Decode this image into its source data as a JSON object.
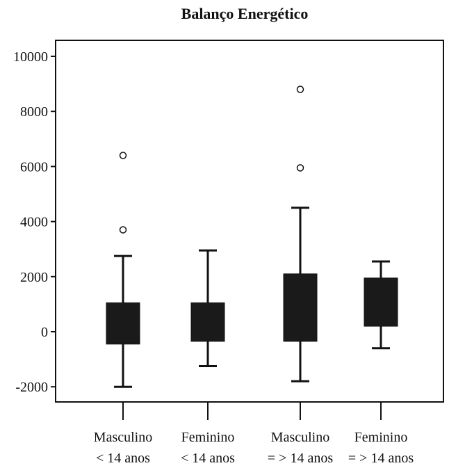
{
  "chart_data": {
    "type": "boxplot",
    "title": "Balanço Energético",
    "xlabel": "",
    "ylabel": "",
    "ylim": [
      -2600,
      10500
    ],
    "yticks": [
      -2000,
      0,
      2000,
      4000,
      6000,
      8000,
      10000
    ],
    "ytick_labels": [
      "-2000",
      "0",
      "2000",
      "4000",
      "6000",
      "8000",
      "10000"
    ],
    "categories": [
      [
        "Masculino",
        "< 14 anos"
      ],
      [
        "Feminino",
        "< 14 anos"
      ],
      [
        "Masculino",
        "= > 14 anos"
      ],
      [
        "Feminino",
        "= > 14 anos"
      ]
    ],
    "boxes": [
      {
        "whisker_low": -2000,
        "q1": -450,
        "q3": 1050,
        "whisker_high": 2750,
        "outliers": [
          3700,
          6400
        ]
      },
      {
        "whisker_low": -1250,
        "q1": -350,
        "q3": 1050,
        "whisker_high": 2950,
        "outliers": []
      },
      {
        "whisker_low": -1800,
        "q1": -350,
        "q3": 2100,
        "whisker_high": 4500,
        "outliers": [
          5950,
          8800
        ]
      },
      {
        "whisker_low": -600,
        "q1": 200,
        "q3": 1950,
        "whisker_high": 2550,
        "outliers": []
      }
    ],
    "box_color": "#1a1a1a",
    "grid": false,
    "legend": "none"
  }
}
